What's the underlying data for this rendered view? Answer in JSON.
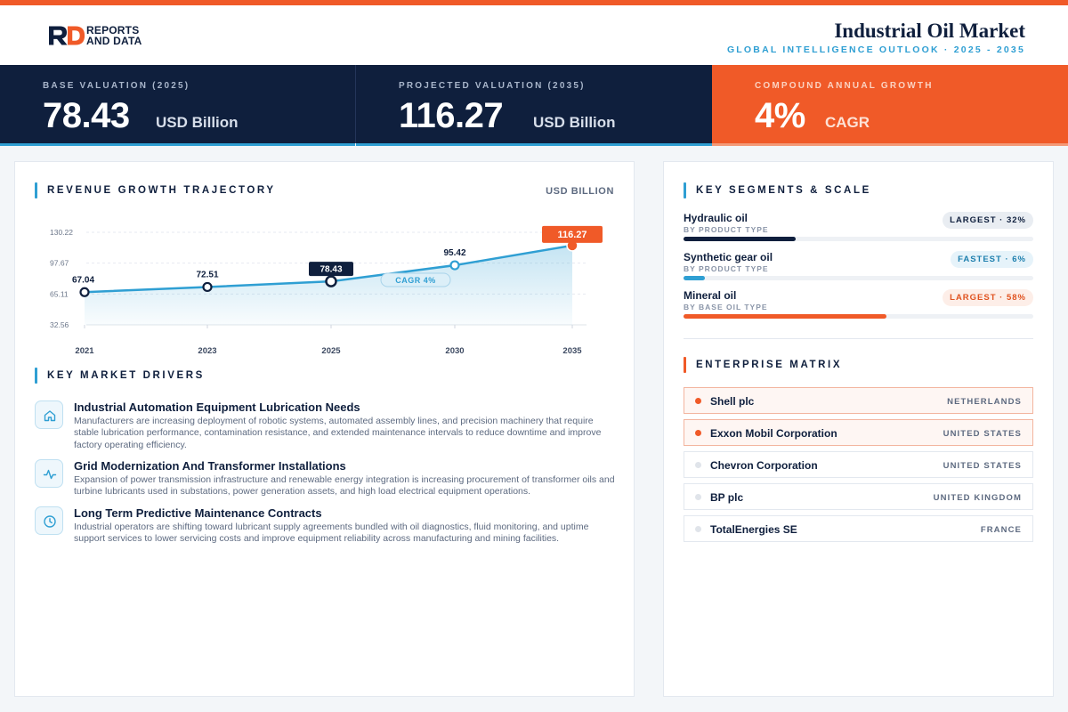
{
  "brand": {
    "line1": "REPORTS",
    "line2": "AND DATA",
    "accent": "#f05a28",
    "navy": "#0f1f3d",
    "blue": "#2f9fd3"
  },
  "header": {
    "title": "Industrial Oil Market",
    "subtitle": "GLOBAL INTELLIGENCE OUTLOOK  ·  2025 - 2035"
  },
  "kpis": [
    {
      "label": "BASE VALUATION (2025)",
      "value": "78.43",
      "unit": "USD Billion"
    },
    {
      "label": "PROJECTED VALUATION (2035)",
      "value": "116.27",
      "unit": "USD Billion"
    },
    {
      "label": "COMPOUND ANNUAL GROWTH",
      "value": "4%",
      "unit": "CAGR"
    }
  ],
  "revenue": {
    "title": "REVENUE GROWTH TRAJECTORY",
    "unit": "USD BILLION"
  },
  "chart_data": {
    "type": "area",
    "categories": [
      "2021",
      "2023",
      "2025",
      "2030",
      "2035"
    ],
    "values": [
      67.04,
      72.51,
      78.43,
      95.42,
      116.27
    ],
    "labels": [
      "67.04",
      "72.51",
      "78.43",
      "95.42",
      "116.27"
    ],
    "yticks": [
      "130.22",
      "97.67",
      "65.11",
      "32.56"
    ],
    "ytick_values": [
      130.22,
      97.67,
      65.11,
      32.56
    ],
    "ylim": [
      32.56,
      130.22
    ],
    "annotation": "CAGR 4%",
    "highlight": {
      "base_index": 2,
      "final_index": 4
    },
    "grid": "horizontal-dashed",
    "legend": "none"
  },
  "drivers": {
    "title": "KEY MARKET DRIVERS",
    "items": [
      {
        "icon": "home-icon",
        "title": "Industrial Automation Equipment Lubrication Needs",
        "text": "Manufacturers are increasing deployment of robotic systems, automated assembly lines, and precision machinery that require stable lubrication performance, contamination resistance, and extended maintenance intervals to reduce downtime and improve factory operating efficiency."
      },
      {
        "icon": "pulse-icon",
        "title": "Grid Modernization And Transformer Installations",
        "text": "Expansion of power transmission infrastructure and renewable energy integration is increasing procurement of transformer oils and turbine lubricants used in substations, power generation assets, and high load electrical equipment operations."
      },
      {
        "icon": "clock-icon",
        "title": "Long Term Predictive Maintenance Contracts",
        "text": "Industrial operators are shifting toward lubricant supply agreements bundled with oil diagnostics, fluid monitoring, and uptime support services to lower servicing costs and improve equipment reliability across manufacturing and mining facilities."
      }
    ]
  },
  "segments": {
    "title": "KEY SEGMENTS & SCALE",
    "items": [
      {
        "name": "Hydraulic oil",
        "category": "BY PRODUCT TYPE",
        "badge": "LARGEST · 32%",
        "share": 32,
        "color": "#0f1f3d",
        "badge_bg": "#e9edf2",
        "badge_fg": "#0f1f3d"
      },
      {
        "name": "Synthetic gear oil",
        "category": "BY PRODUCT TYPE",
        "badge": "FASTEST · 6%",
        "share": 6,
        "color": "#2f9fd3",
        "badge_bg": "#e6f3fa",
        "badge_fg": "#1d7fae"
      },
      {
        "name": "Mineral oil",
        "category": "BY BASE OIL TYPE",
        "badge": "LARGEST · 58%",
        "share": 58,
        "color": "#f05a28",
        "badge_bg": "#fdeee8",
        "badge_fg": "#e0521f"
      }
    ]
  },
  "enterprise": {
    "title": "ENTERPRISE MATRIX",
    "items": [
      {
        "name": "Shell plc",
        "country": "NETHERLANDS",
        "highlight": true
      },
      {
        "name": "Exxon Mobil Corporation",
        "country": "UNITED STATES",
        "highlight": true
      },
      {
        "name": "Chevron Corporation",
        "country": "UNITED STATES",
        "highlight": false
      },
      {
        "name": "BP plc",
        "country": "UNITED KINGDOM",
        "highlight": false
      },
      {
        "name": "TotalEnergies SE",
        "country": "FRANCE",
        "highlight": false
      }
    ]
  }
}
